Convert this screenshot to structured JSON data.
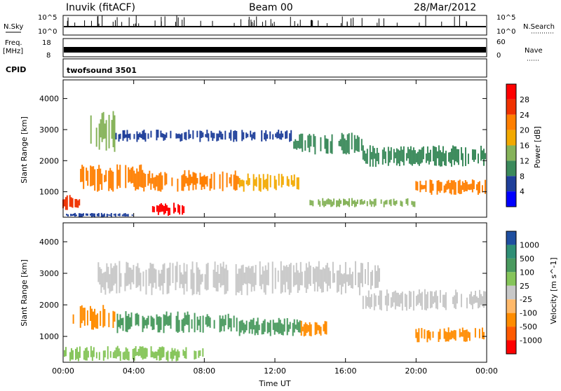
{
  "header": {
    "station": "Inuvik (fitACF)",
    "beam": "Beam 00",
    "date": "28/Mar/2012"
  },
  "noise_panel": {
    "left_label": "N.Sky",
    "right_label": "N.Search",
    "left_ticks": [
      "10^5",
      "10^0"
    ],
    "right_ticks": [
      "10^5",
      "10^0"
    ]
  },
  "freq_panel": {
    "left_label_1": "Freq.",
    "left_label_2": "[MHz]",
    "left_ticks": [
      "18",
      "8"
    ],
    "right_label": "Nave",
    "right_ticks": [
      "60",
      "0"
    ]
  },
  "cpid_panel": {
    "label": "CPID",
    "value": "twofsound 3501"
  },
  "colors": {
    "power": [
      "#0000ff",
      "#1f3f9a",
      "#3b8a5b",
      "#86b35a",
      "#f2a900",
      "#ff7f00",
      "#f03200",
      "#ff0000"
    ],
    "velocity": [
      "#ff0000",
      "#ff5a00",
      "#ff8c00",
      "#ffb96a",
      "#c8c8c8",
      "#86c55a",
      "#4a9a5f",
      "#2f8f76",
      "#1f4fa0"
    ]
  },
  "chart_data": [
    {
      "type": "heatmap",
      "title": "",
      "xlabel": "",
      "ylabel": "Slant Range [km]",
      "x_ticks": [
        "00:00",
        "04:00",
        "08:00",
        "12:00",
        "16:00",
        "20:00",
        "00:00"
      ],
      "y_ticks": [
        "1000",
        "2000",
        "3000",
        "4000"
      ],
      "ylim": [
        180,
        4600
      ],
      "colorbar": {
        "label": "Power [dB]",
        "ticks": [
          "4",
          "8",
          "12",
          "16",
          "20",
          "24",
          "28"
        ],
        "range": [
          0,
          32
        ]
      },
      "regions": [
        {
          "t_start": 0.0,
          "t_end": 1.0,
          "range_lo": 400,
          "range_hi": 900,
          "power": 26
        },
        {
          "t_start": 0.2,
          "t_end": 4.0,
          "range_lo": 180,
          "range_hi": 320,
          "power": 4
        },
        {
          "t_start": 1.0,
          "t_end": 4.5,
          "range_lo": 1000,
          "range_hi": 1900,
          "power": 22
        },
        {
          "t_start": 4.5,
          "t_end": 10.0,
          "range_lo": 1000,
          "range_hi": 1700,
          "power": 20
        },
        {
          "t_start": 10.0,
          "t_end": 13.5,
          "range_lo": 1000,
          "range_hi": 1600,
          "power": 18
        },
        {
          "t_start": 5.0,
          "t_end": 7.0,
          "range_lo": 220,
          "range_hi": 650,
          "power": 28
        },
        {
          "t_start": 1.5,
          "t_end": 3.0,
          "range_lo": 2200,
          "range_hi": 3600,
          "power": 12
        },
        {
          "t_start": 3.0,
          "t_end": 13.0,
          "range_lo": 2600,
          "range_hi": 3000,
          "power": 6
        },
        {
          "t_start": 13.0,
          "t_end": 17.0,
          "range_lo": 2200,
          "range_hi": 2900,
          "power": 10
        },
        {
          "t_start": 17.0,
          "t_end": 24.0,
          "range_lo": 1800,
          "range_hi": 2500,
          "power": 8
        },
        {
          "t_start": 14.0,
          "t_end": 20.0,
          "range_lo": 500,
          "range_hi": 800,
          "power": 12
        },
        {
          "t_start": 20.0,
          "t_end": 24.0,
          "range_lo": 900,
          "range_hi": 1400,
          "power": 20
        }
      ]
    },
    {
      "type": "heatmap",
      "title": "",
      "xlabel": "Time UT",
      "ylabel": "Slant Range [km]",
      "x_ticks": [
        "00:00",
        "04:00",
        "08:00",
        "12:00",
        "16:00",
        "20:00",
        "00:00"
      ],
      "y_ticks": [
        "1000",
        "2000",
        "3000",
        "4000"
      ],
      "ylim": [
        180,
        4600
      ],
      "colorbar": {
        "label": "Velocity [m s^-1]",
        "ticks": [
          "1000",
          "500",
          "100",
          "25",
          "-25",
          "-100",
          "-500",
          "-1000"
        ]
      },
      "regions": [
        {
          "t_start": 0.5,
          "t_end": 3.0,
          "range_lo": 1200,
          "range_hi": 2000,
          "velocity": -300
        },
        {
          "t_start": 3.0,
          "t_end": 10.0,
          "range_lo": 1100,
          "range_hi": 1800,
          "velocity": 200
        },
        {
          "t_start": 10.0,
          "t_end": 13.5,
          "range_lo": 1000,
          "range_hi": 1600,
          "velocity": 120
        },
        {
          "t_start": 13.5,
          "t_end": 15.0,
          "range_lo": 1000,
          "range_hi": 1500,
          "velocity": -300
        },
        {
          "t_start": 2.0,
          "t_end": 18.0,
          "range_lo": 2300,
          "range_hi": 3400,
          "velocity": 0
        },
        {
          "t_start": 17.0,
          "t_end": 24.0,
          "range_lo": 1800,
          "range_hi": 2500,
          "velocity": 0
        },
        {
          "t_start": 20.0,
          "t_end": 24.0,
          "range_lo": 800,
          "range_hi": 1300,
          "velocity": -300
        },
        {
          "t_start": 0.0,
          "t_end": 8.0,
          "range_lo": 200,
          "range_hi": 700,
          "velocity": 50
        }
      ]
    }
  ]
}
